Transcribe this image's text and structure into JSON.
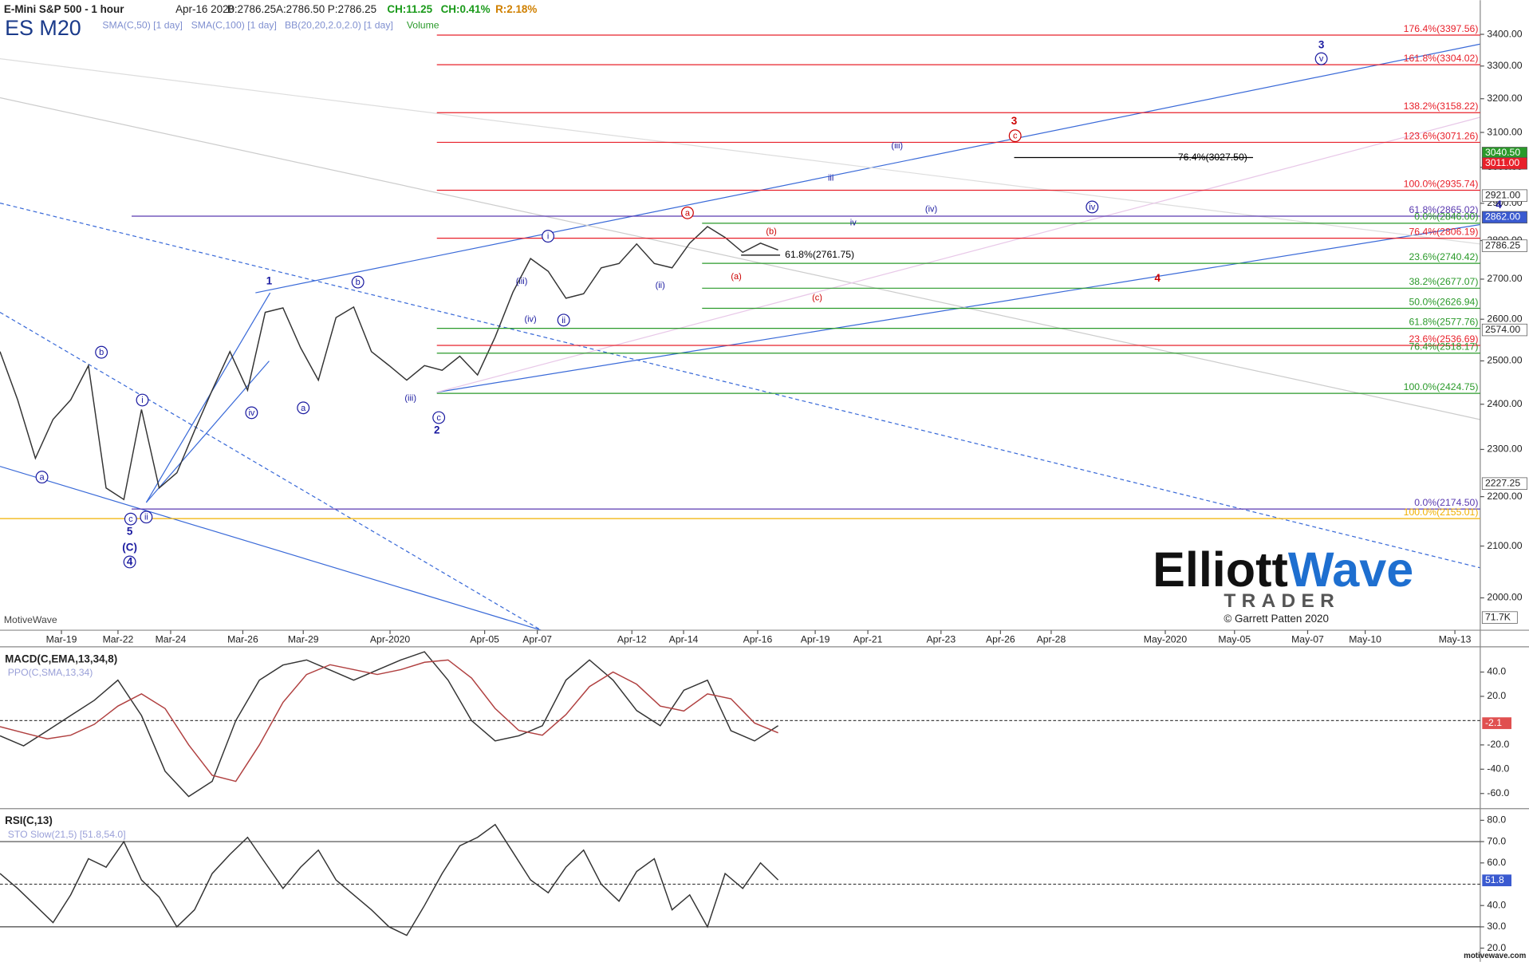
{
  "header": {
    "symbol": "ES M20",
    "title": "E-Mini S&P 500 - 1 hour",
    "date": "Apr-16 2020",
    "bid": "B:2786.25",
    "ask": "A:2786.50",
    "price": "P:2786.25",
    "change": "CH:11.25",
    "change_pct": "CH:0.41%",
    "range": "R:2.18%",
    "studies": [
      "SMA(C,50) [1 day]",
      "SMA(C,100) [1 day]",
      "BB(20,20,2.0,2.0) [1 day]",
      "Volume"
    ]
  },
  "logo": {
    "brand_1": "Elliott",
    "brand_2": "Wave",
    "brand_3": "TRADER",
    "credit": "© Garrett Patten 2020"
  },
  "footer": {
    "app": "MotiveWave",
    "site": "motivewave.com"
  },
  "chart_data": [
    {
      "type": "line",
      "color": "#333333",
      "log_scale": true,
      "ylim": [
        1940,
        3511
      ],
      "yticks": [
        {
          "value": 2000,
          "label": "2000.00"
        },
        {
          "value": 2100,
          "label": "2100.00"
        },
        {
          "value": 2200,
          "label": "2200.00"
        },
        {
          "value": 2300,
          "label": "2300.00"
        },
        {
          "value": 2400,
          "label": "2400.00"
        },
        {
          "value": 2500,
          "label": "2500.00"
        },
        {
          "value": 2600,
          "label": "2600.00"
        },
        {
          "value": 2700,
          "label": "2700.00"
        },
        {
          "value": 2800,
          "label": "2800.00"
        },
        {
          "value": 2900,
          "label": "2900.00"
        },
        {
          "value": 3000,
          "label": "3000.00"
        },
        {
          "value": 3100,
          "label": "3100.00"
        },
        {
          "value": 3200,
          "label": "3200.00"
        },
        {
          "value": 3300,
          "label": "3300.00"
        },
        {
          "value": 3400,
          "label": "3400.00"
        }
      ],
      "x_tick_labels": [
        "Mar-19",
        "Mar-22",
        "Mar-24",
        "Mar-26",
        "Mar-29",
        "Apr-2020",
        "Apr-05",
        "Apr-07",
        "Apr-12",
        "Apr-14",
        "Apr-16",
        "Apr-19",
        "Apr-21",
        "Apr-23",
        "Apr-26",
        "Apr-28",
        "May-2020",
        "May-05",
        "May-07",
        "May-10",
        "May-13"
      ],
      "values": [
        2522,
        2410,
        2281,
        2366,
        2410,
        2489,
        2218,
        2194,
        2388,
        2218,
        2250,
        2341,
        2432,
        2522,
        2432,
        2617,
        2628,
        2531,
        2455,
        2604,
        2630,
        2522,
        2489,
        2455,
        2489,
        2478,
        2511,
        2467,
        2557,
        2667,
        2753,
        2720,
        2652,
        2663,
        2729,
        2740,
        2791,
        2740,
        2729,
        2793,
        2837,
        2808,
        2769,
        2793,
        2775
      ],
      "levels": [
        {
          "value": 3397.56,
          "label": "176.4%(3397.56)",
          "color": "#e8202a"
        },
        {
          "value": 3304.02,
          "label": "161.8%(3304.02)",
          "color": "#e8202a"
        },
        {
          "value": 3158.22,
          "label": "138.2%(3158.22)",
          "color": "#e8202a"
        },
        {
          "value": 3071.26,
          "label": "123.6%(3071.26)",
          "color": "#e8202a"
        },
        {
          "value": 2935.74,
          "label": "100.0%(2935.74)",
          "color": "#e8202a"
        },
        {
          "value": 2865.02,
          "label": "61.8%(2865.02)",
          "color": "#5a3ab0"
        },
        {
          "value": 2846.0,
          "label": "0.0%(2846.00)",
          "color": "#2a9a2a"
        },
        {
          "value": 2806.19,
          "label": "76.4%(2806.19)",
          "color": "#e8202a"
        },
        {
          "value": 2740.42,
          "label": "23.6%(2740.42)",
          "color": "#2a9a2a"
        },
        {
          "value": 2677.07,
          "label": "38.2%(2677.07)",
          "color": "#2a9a2a"
        },
        {
          "value": 2626.94,
          "label": "50.0%(2626.94)",
          "color": "#2a9a2a"
        },
        {
          "value": 2577.76,
          "label": "61.8%(2577.76)",
          "color": "#2a9a2a"
        },
        {
          "value": 2536.69,
          "label": "23.6%(2536.69)",
          "color": "#e8202a"
        },
        {
          "value": 2518.17,
          "label": "76.4%(2518.17)",
          "color": "#2a9a2a"
        },
        {
          "value": 2424.75,
          "label": "100.0%(2424.75)",
          "color": "#2a9a2a"
        },
        {
          "value": 2174.5,
          "label": "0.0%(2174.50)",
          "color": "#5a3ab0"
        },
        {
          "value": 2155.01,
          "label": "100.0%(2155.01)",
          "color": "#f0b000"
        },
        {
          "value": 3027.5,
          "label": "76.4%(3027.50)",
          "color": "#000000"
        },
        {
          "value": 2761.75,
          "label": "61.8%(2761.75)",
          "color": "#000000"
        }
      ],
      "price_tags": [
        {
          "value": 3040.5,
          "label": "3040.50",
          "color": "#2a9a2a"
        },
        {
          "value": 3011.0,
          "label": "3011.00",
          "color": "#e8202a"
        },
        {
          "value": 2921.0,
          "label": "2921.00",
          "color": "#ffffff"
        },
        {
          "value": 2862.0,
          "label": "2862.00",
          "color": "#3a5ad0"
        },
        {
          "value": 2786.25,
          "label": "2786.25",
          "color": "#ffffff"
        },
        {
          "value": 2574.0,
          "label": "2574.00",
          "color": "#ffffff"
        },
        {
          "value": 2227.25,
          "label": "2227.25",
          "color": "#ffffff"
        }
      ],
      "volume_label": "71.7K",
      "wave_labels": [
        {
          "text": "1",
          "color": "#1a1aa0",
          "bold": true
        },
        {
          "text": "2",
          "color": "#1a1aa0",
          "bold": true
        },
        {
          "text": "3",
          "color": "#1a1aa0",
          "bold": true
        },
        {
          "text": "4",
          "color": "#1a1aa0",
          "bold": true
        },
        {
          "text": "5",
          "color": "#1a1aa0",
          "bold": true
        },
        {
          "text": "(C)",
          "color": "#1a1aa0",
          "bold": true
        },
        {
          "text": "3",
          "color": "#cc0000",
          "bold": true
        },
        {
          "text": "4",
          "color": "#cc0000",
          "bold": true
        },
        {
          "text": "(iii)",
          "color": "#1a1aa0"
        },
        {
          "text": "iii",
          "color": "#1a1aa0"
        },
        {
          "text": "iv",
          "color": "#1a1aa0"
        },
        {
          "text": "(iv)",
          "color": "#1a1aa0"
        },
        {
          "text": "(ii)",
          "color": "#1a1aa0"
        },
        {
          "text": "(iii)",
          "color": "#1a1aa0"
        },
        {
          "text": "(iv)",
          "color": "#1a1aa0"
        },
        {
          "text": "(iii)",
          "color": "#1a1aa0"
        },
        {
          "text": "(a)",
          "color": "#cc0000"
        },
        {
          "text": "(b)",
          "color": "#cc0000"
        },
        {
          "text": "(c)",
          "color": "#cc0000"
        },
        {
          "text": "i",
          "color": "#1a1aa0",
          "circled": true
        },
        {
          "text": "ii",
          "color": "#1a1aa0",
          "circled": true
        },
        {
          "text": "iv",
          "color": "#1a1aa0",
          "circled": true
        },
        {
          "text": "a",
          "color": "#cc0000",
          "circled": true
        },
        {
          "text": "c",
          "color": "#cc0000",
          "circled": true
        },
        {
          "text": "v",
          "color": "#1a1aa0",
          "circled": true
        },
        {
          "text": "iv",
          "color": "#1a1aa0",
          "circled": true
        },
        {
          "text": "b",
          "color": "#1a1aa0",
          "circled": true
        },
        {
          "text": "a",
          "color": "#1a1aa0",
          "circled": true
        },
        {
          "text": "i",
          "color": "#1a1aa0",
          "circled": true
        },
        {
          "text": "c",
          "color": "#1a1aa0",
          "circled": true
        },
        {
          "text": "ii",
          "color": "#1a1aa0",
          "circled": true
        },
        {
          "text": "4",
          "color": "#1a1aa0",
          "circled": true,
          "bold": true
        },
        {
          "text": "b",
          "color": "#1a1aa0",
          "circled": true
        },
        {
          "text": "a",
          "color": "#1a1aa0",
          "circled": true
        },
        {
          "text": "c",
          "color": "#1a1aa0",
          "circled": true
        }
      ]
    },
    {
      "type": "line",
      "title": "MACD(C,EMA,13,34,8)",
      "subtitle": "PPO(C,SMA,13,34)",
      "ylim": [
        -71.7,
        60
      ],
      "yticks": [
        {
          "value": -60,
          "label": "-60.0"
        },
        {
          "value": -40,
          "label": "-40.0"
        },
        {
          "value": -20,
          "label": "-20.0"
        },
        {
          "value": 20,
          "label": "20.0"
        },
        {
          "value": 40,
          "label": "40.0"
        }
      ],
      "reference_lines": [
        0
      ],
      "tag": -2.1,
      "series": [
        {
          "color": "#333333",
          "values": [
            -12.5,
            -20.8,
            -8.3,
            4.2,
            16.7,
            33.3,
            4.2,
            -41.7,
            -62.5,
            -50,
            0,
            33.3,
            45.8,
            50,
            41.7,
            33.3,
            41.7,
            50,
            56.7,
            33.3,
            0,
            -16.7,
            -12.5,
            -4.2,
            33.3,
            50,
            33.3,
            8.3,
            -4.2,
            25,
            33.3,
            -8.3,
            -16.7,
            -4.2
          ]
        },
        {
          "color": "#b04040",
          "values": [
            -5,
            -10,
            -15,
            -12,
            -3,
            12,
            22,
            10,
            -20,
            -45,
            -50,
            -20,
            15,
            38,
            46,
            42,
            38,
            42,
            48,
            50,
            35,
            10,
            -8,
            -12,
            5,
            28,
            40,
            30,
            12,
            8,
            22,
            18,
            -2,
            -10
          ]
        }
      ]
    },
    {
      "type": "line",
      "title": "RSI(C,13)",
      "subtitle": "STO Slow(21,5) [51.8,54.0]",
      "color": "#333333",
      "ylim": [
        13.6,
        85
      ],
      "yticks": [
        {
          "value": 20,
          "label": "20.0"
        },
        {
          "value": 30,
          "label": "30.0"
        },
        {
          "value": 40,
          "label": "40.0"
        },
        {
          "value": 60,
          "label": "60.0"
        },
        {
          "value": 70,
          "label": "70.0"
        },
        {
          "value": 80,
          "label": "80.0"
        }
      ],
      "reference_lines": [
        30,
        50,
        70
      ],
      "tag": 51.8,
      "values": [
        55,
        48,
        40,
        32,
        45,
        62,
        58,
        70,
        52,
        44,
        30,
        38,
        55,
        64,
        72,
        60,
        48,
        58,
        66,
        52,
        45,
        38,
        30,
        26,
        40,
        55,
        68,
        72,
        78,
        65,
        52,
        46,
        58,
        66,
        50,
        42,
        56,
        62,
        38,
        45,
        30,
        55,
        48,
        60,
        52
      ]
    }
  ]
}
